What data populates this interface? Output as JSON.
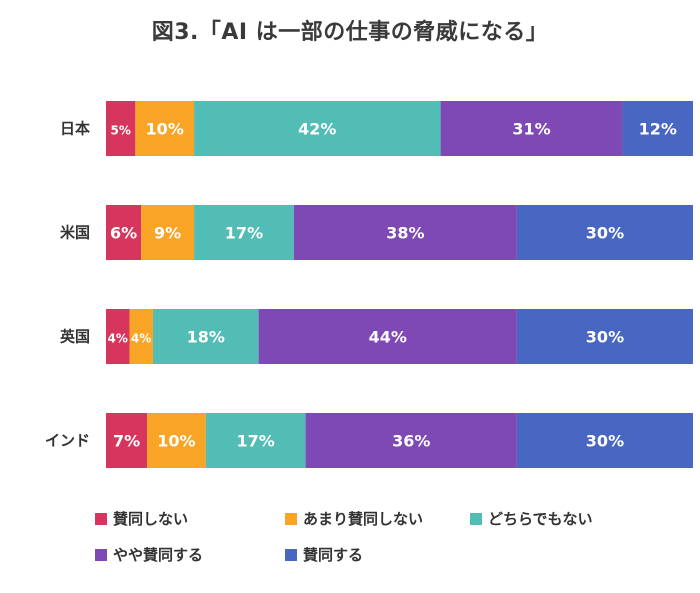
{
  "chart_data": {
    "type": "bar",
    "orientation": "horizontal",
    "stacked": true,
    "title": "図3.「AI は一部の仕事の脅威になる」",
    "categories": [
      "日本",
      "米国",
      "英国",
      "インド"
    ],
    "series": [
      {
        "name": "賛同しない",
        "color": "#d6365e",
        "values": [
          5,
          6,
          4,
          7
        ],
        "labels": [
          "5%",
          "6%",
          "4%",
          "7%"
        ]
      },
      {
        "name": "あまり賛同しない",
        "color": "#f9a425",
        "values": [
          10,
          9,
          4,
          10
        ],
        "labels": [
          "10%",
          "9%",
          "4%",
          "10%"
        ]
      },
      {
        "name": "どちらでもない",
        "color": "#52bdb5",
        "values": [
          42,
          17,
          18,
          17
        ],
        "labels": [
          "42%",
          "17%",
          "18%",
          "17%"
        ]
      },
      {
        "name": "やや賛同する",
        "color": "#7e48b5",
        "values": [
          31,
          38,
          44,
          36
        ],
        "labels": [
          "31%",
          "38%",
          "44%",
          "36%"
        ]
      },
      {
        "name": "賛同する",
        "color": "#4767c2",
        "values": [
          12,
          30,
          30,
          30
        ],
        "labels": [
          "12%",
          "30%",
          "30%",
          "30%"
        ]
      }
    ],
    "xlim": [
      0,
      100
    ],
    "xlabel": "",
    "ylabel": "",
    "grid": false,
    "legend_position": "bottom"
  }
}
